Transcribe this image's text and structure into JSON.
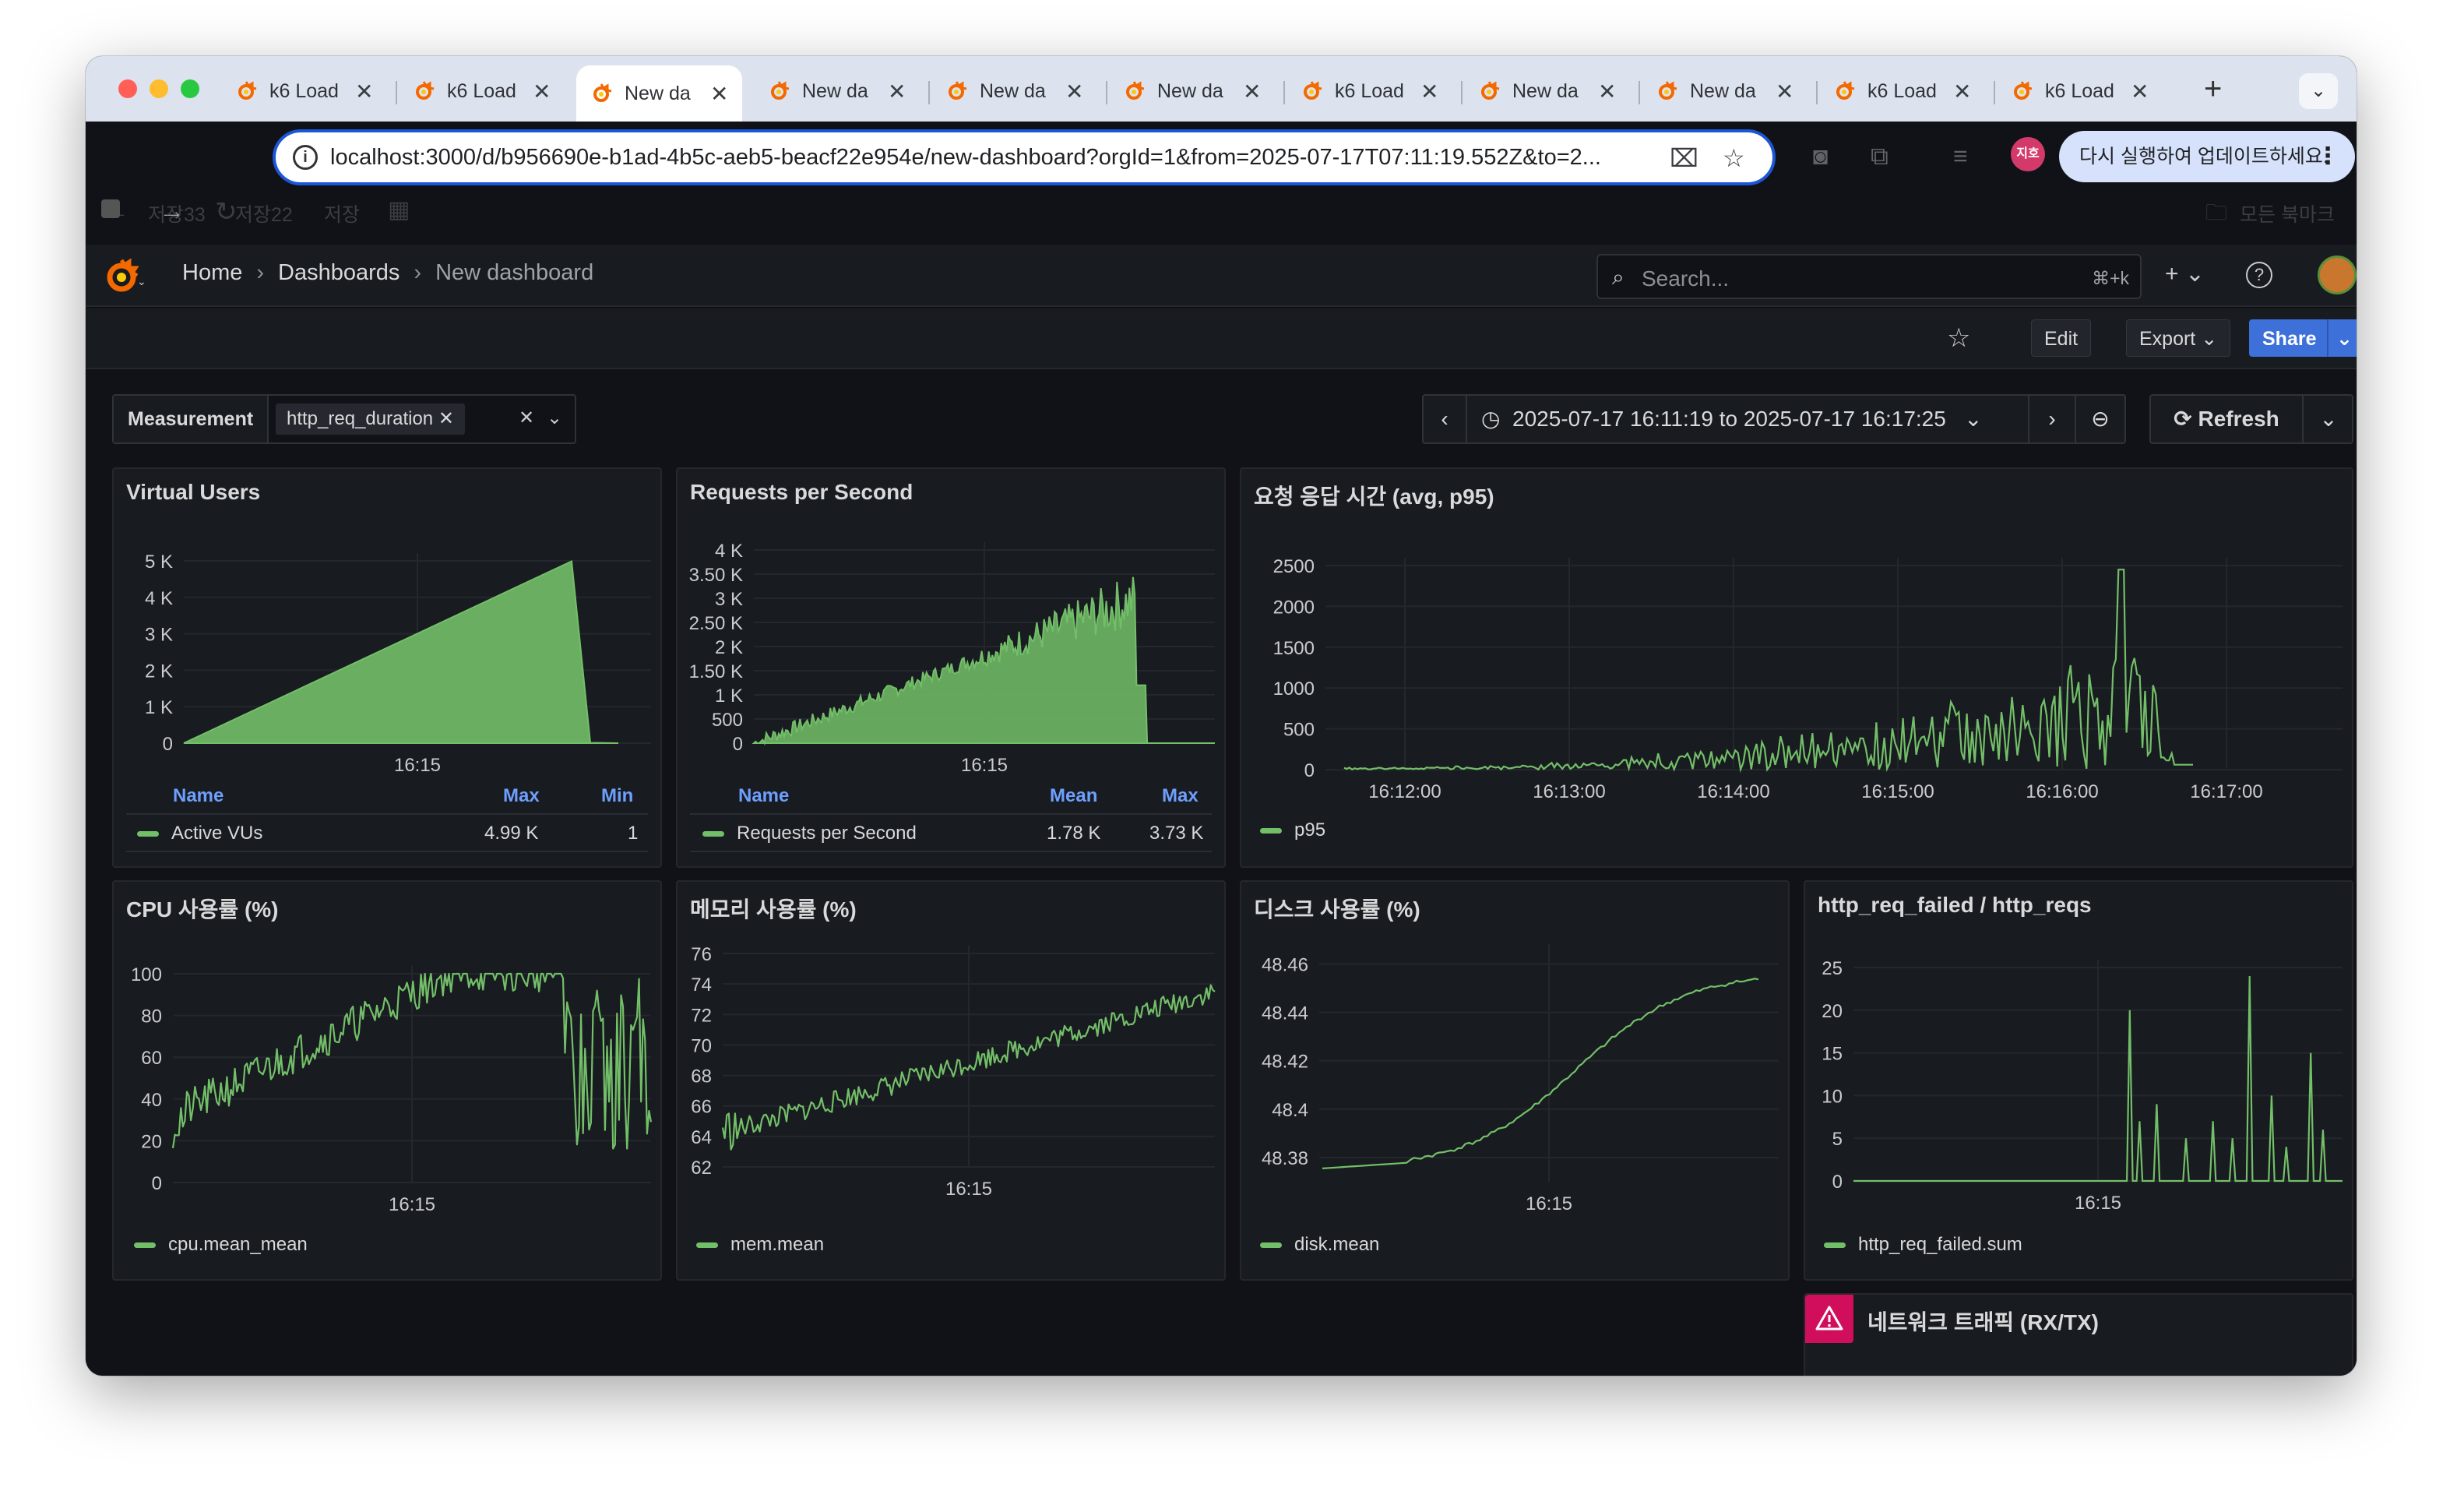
{
  "browser": {
    "tabs": [
      {
        "title": "k6 Load",
        "active": false
      },
      {
        "title": "k6 Load",
        "active": false
      },
      {
        "title": "New da",
        "active": true
      },
      {
        "title": "New da",
        "active": false
      },
      {
        "title": "New da",
        "active": false
      },
      {
        "title": "New da",
        "active": false
      },
      {
        "title": "k6 Load",
        "active": false
      },
      {
        "title": "New da",
        "active": false
      },
      {
        "title": "New da",
        "active": false
      },
      {
        "title": "k6 Load",
        "active": false
      },
      {
        "title": "k6 Load",
        "active": false
      }
    ],
    "url": "localhost:3000/d/b956690e-b1ad-4b5c-aeb5-beacf22e954e/new-dashboard?orgId=1&from=2025-07-17T07:11:19.552Z&to=2...",
    "profile_badge": "지호",
    "update_text": "다시 실행하여 업데이트하세요.",
    "bookmarks": [
      "저장33",
      "저장22",
      "저장"
    ],
    "all_bookmarks": "모든 북마크"
  },
  "grafana": {
    "breadcrumb": {
      "home": "Home",
      "dashboards": "Dashboards",
      "current": "New dashboard"
    },
    "search_placeholder": "Search...",
    "search_shortcut": "⌘+k",
    "buttons": {
      "edit": "Edit",
      "export": "Export",
      "share": "Share",
      "refresh": "Refresh"
    },
    "variable": {
      "label": "Measurement",
      "value": "http_req_duration"
    },
    "time_range": "2025-07-17 16:11:19 to 2025-07-17 16:17:25"
  },
  "panels": {
    "vus": {
      "title": "Virtual Users",
      "legend_headers": {
        "name": "Name",
        "max": "Max",
        "min": "Min"
      },
      "legend": {
        "name": "Active VUs",
        "max": "4.99 K",
        "min": "1"
      }
    },
    "rps": {
      "title": "Requests per Second",
      "legend_headers": {
        "name": "Name",
        "mean": "Mean",
        "max": "Max"
      },
      "legend": {
        "name": "Requests per Second",
        "mean": "1.78 K",
        "max": "3.73 K"
      }
    },
    "latency": {
      "title": "요청 응답 시간 (avg, p95)",
      "legend": "p95"
    },
    "cpu": {
      "title": "CPU 사용률 (%)",
      "legend": "cpu.mean_mean"
    },
    "mem": {
      "title": "메모리 사용률 (%)",
      "legend": "mem.mean"
    },
    "disk": {
      "title": "디스크 사용률 (%)",
      "legend": "disk.mean"
    },
    "failed": {
      "title": "http_req_failed / http_reqs",
      "legend": "http_req_failed.sum"
    },
    "network": {
      "title": "네트워크 트래픽 (RX/TX)"
    }
  },
  "colors": {
    "series": "#73bf69",
    "accent": "#3d71d9",
    "panel_bg": "#181b1f",
    "page_bg": "#111217",
    "error": "#d10e5c"
  },
  "chart_data": [
    {
      "id": "vus",
      "type": "area",
      "title": "Virtual Users",
      "yticks": [
        "5 K",
        "4 K",
        "3 K",
        "2 K",
        "1 K",
        "0"
      ],
      "ytick_values": [
        5000,
        4000,
        3000,
        2000,
        1000,
        0
      ],
      "xticks": [
        "16:15"
      ],
      "xtick_values": [
        0.5
      ],
      "ylim": [
        0,
        5000
      ],
      "series": [
        {
          "name": "Active VUs",
          "x": [
            0,
            0.83,
            0.85,
            0.87,
            0.93
          ],
          "values": [
            0,
            4990,
            2500,
            10,
            0
          ]
        }
      ]
    },
    {
      "id": "rps",
      "type": "area",
      "title": "Requests per Second",
      "yticks": [
        "4 K",
        "3.50 K",
        "3 K",
        "2.50 K",
        "2 K",
        "1.50 K",
        "1 K",
        "500",
        "0"
      ],
      "ytick_values": [
        4000,
        3500,
        3000,
        2500,
        2000,
        1500,
        1000,
        500,
        0
      ],
      "xticks": [
        "16:15"
      ],
      "xtick_values": [
        0.5
      ],
      "ylim": [
        0,
        4000
      ],
      "series": [
        {
          "name": "Requests per Second",
          "peak": 3730,
          "mean": 1780
        }
      ]
    },
    {
      "id": "latency",
      "type": "line",
      "title": "요청 응답 시간 (avg, p95)",
      "yticks": [
        "2500",
        "2000",
        "1500",
        "1000",
        "500",
        "0"
      ],
      "ytick_values": [
        2500,
        2000,
        1500,
        1000,
        500,
        0
      ],
      "xticks": [
        "16:12:00",
        "16:13:00",
        "16:14:00",
        "16:15:00",
        "16:16:00",
        "16:17:00"
      ],
      "xtick_values": [
        1,
        2,
        3,
        4,
        5,
        6
      ],
      "ylim": [
        0,
        2500
      ],
      "series": [
        {
          "name": "p95",
          "max": 2450
        }
      ]
    },
    {
      "id": "cpu",
      "type": "line",
      "title": "CPU 사용률 (%)",
      "yticks": [
        "100",
        "80",
        "60",
        "40",
        "20",
        "0"
      ],
      "ytick_values": [
        100,
        80,
        60,
        40,
        20,
        0
      ],
      "xticks": [
        "16:15"
      ],
      "xtick_values": [
        0.5
      ],
      "ylim": [
        0,
        100
      ],
      "series": [
        {
          "name": "cpu.mean_mean"
        }
      ]
    },
    {
      "id": "mem",
      "type": "line",
      "title": "메모리 사용률 (%)",
      "yticks": [
        "76",
        "74",
        "72",
        "70",
        "68",
        "66",
        "64",
        "62"
      ],
      "ytick_values": [
        76,
        74,
        72,
        70,
        68,
        66,
        64,
        62
      ],
      "xticks": [
        "16:15"
      ],
      "xtick_values": [
        0.5
      ],
      "ylim": [
        62,
        76
      ],
      "series": [
        {
          "name": "mem.mean"
        }
      ]
    },
    {
      "id": "disk",
      "type": "line",
      "title": "디스크 사용률 (%)",
      "yticks": [
        "48.46",
        "48.44",
        "48.42",
        "48.4",
        "48.38"
      ],
      "ytick_values": [
        48.46,
        48.44,
        48.42,
        48.4,
        48.38
      ],
      "ylim": [
        48.37,
        48.465
      ],
      "xticks": [
        "16:15"
      ],
      "xtick_values": [
        0.5
      ],
      "series": [
        {
          "name": "disk.mean"
        }
      ]
    },
    {
      "id": "failed",
      "type": "line",
      "title": "http_req_failed / http_reqs",
      "yticks": [
        "25",
        "20",
        "15",
        "10",
        "5",
        "0"
      ],
      "ytick_values": [
        25,
        20,
        15,
        10,
        5,
        0
      ],
      "xticks": [
        "16:15"
      ],
      "xtick_values": [
        0.5
      ],
      "ylim": [
        0,
        25
      ],
      "series": [
        {
          "name": "http_req_failed.sum"
        }
      ]
    }
  ]
}
